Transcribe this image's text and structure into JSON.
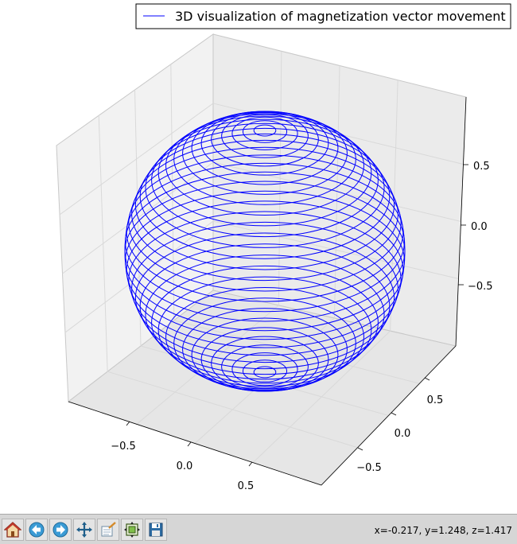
{
  "window": {
    "status_text": "x=-0.217, y=1.248, z=1.417"
  },
  "toolbar": {
    "buttons": [
      {
        "name": "home-icon",
        "tooltip": "Reset original view"
      },
      {
        "name": "back-arrow-icon",
        "tooltip": "Back"
      },
      {
        "name": "forward-arrow-icon",
        "tooltip": "Forward"
      },
      {
        "name": "pan-icon",
        "tooltip": "Pan"
      },
      {
        "name": "zoom-icon",
        "tooltip": "Zoom"
      },
      {
        "name": "configure-subplots-icon",
        "tooltip": "Configure subplots"
      },
      {
        "name": "save-icon",
        "tooltip": "Save"
      }
    ]
  },
  "colors": {
    "series": "#0000ff",
    "pane": "#f2f2f2",
    "grid": "#e0e0e0",
    "toolbar_bg": "#d6d6d6"
  },
  "chart_data": {
    "type": "line",
    "projection": "3d",
    "title": "",
    "series": [
      {
        "name": "3D visualization of magnetization vector movement",
        "color": "#0000ff",
        "shape": "unit sphere wireframe"
      }
    ],
    "x_ticks": [
      "−0.5",
      "0.0",
      "0.5"
    ],
    "y_ticks": [
      "0.5",
      "0.0",
      "−0.5"
    ],
    "z_ticks": [
      "0.5",
      "0.0",
      "−0.5"
    ],
    "xlim": [
      -1,
      1
    ],
    "ylim": [
      -1,
      1
    ],
    "zlim": [
      -1,
      1
    ],
    "legend_position": "top-right",
    "grid": true
  }
}
